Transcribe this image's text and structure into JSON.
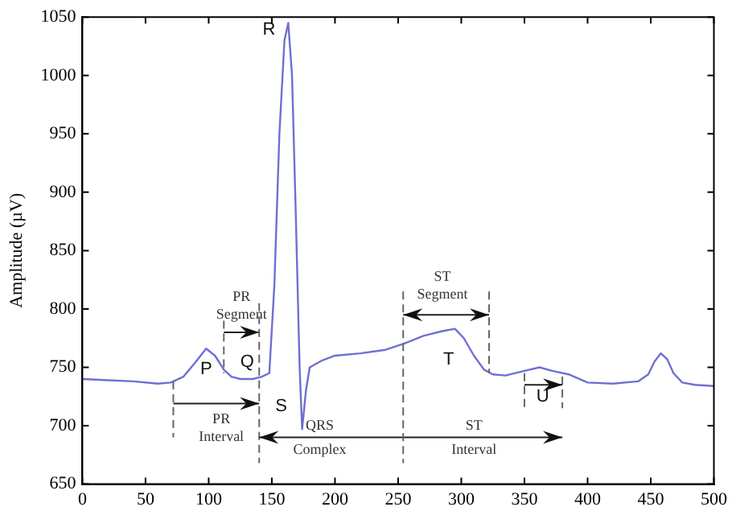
{
  "chart_data": {
    "type": "line",
    "ylabel": "Amplitude (µV)",
    "x": [
      0,
      20,
      40,
      60,
      70,
      80,
      90,
      98,
      105,
      112,
      118,
      125,
      135,
      142,
      148,
      152,
      156,
      160,
      163,
      166,
      169,
      172,
      174,
      177,
      180,
      190,
      200,
      220,
      240,
      254,
      270,
      285,
      295,
      302,
      310,
      318,
      325,
      335,
      350,
      362,
      372,
      385,
      400,
      420,
      440,
      448,
      453,
      458,
      463,
      468,
      475,
      485,
      500
    ],
    "series": [
      {
        "color": "#6f6fd2",
        "values": [
          740,
          739,
          738,
          736,
          737,
          742,
          755,
          766,
          760,
          748,
          742,
          740,
          740,
          742,
          745,
          820,
          950,
          1030,
          1045,
          1000,
          880,
          750,
          697,
          730,
          750,
          756,
          760,
          762,
          765,
          770,
          777,
          781,
          783,
          775,
          760,
          748,
          744,
          743,
          747,
          750,
          747,
          744,
          737,
          736,
          738,
          744,
          755,
          762,
          757,
          745,
          737,
          735,
          734
        ]
      }
    ],
    "xlim": [
      0,
      500
    ],
    "xticks": [
      0,
      50,
      100,
      150,
      200,
      250,
      300,
      350,
      400,
      450,
      500
    ],
    "ylim": [
      650,
      1050
    ],
    "yticks": [
      650,
      700,
      750,
      800,
      850,
      900,
      950,
      1000,
      1050
    ],
    "grid": false,
    "legend": false,
    "marker": "none",
    "line_style": "solid",
    "annotations": [
      {
        "text": "R",
        "x": 163,
        "y": 1045
      },
      {
        "text": "P",
        "x": 98,
        "y": 766
      },
      {
        "text": "Q",
        "x": 142,
        "y": 742
      },
      {
        "text": "S",
        "x": 174,
        "y": 697
      },
      {
        "text": "T",
        "x": 295,
        "y": 783
      },
      {
        "text": "U",
        "x": 362,
        "y": 750
      },
      "PR Segment",
      "PR Interval",
      "QRS Complex",
      "ST Segment",
      "ST Interval"
    ]
  }
}
